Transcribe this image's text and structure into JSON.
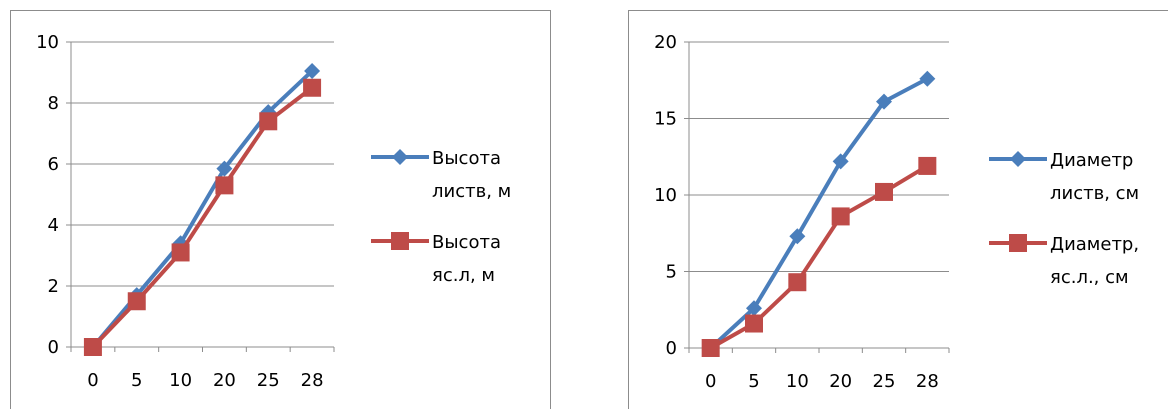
{
  "chart_data": [
    {
      "type": "line",
      "categories": [
        "0",
        "5",
        "10",
        "20",
        "25",
        "28"
      ],
      "ylim": [
        0,
        10
      ],
      "yticks": [
        0,
        2,
        4,
        6,
        8,
        10
      ],
      "grid": true,
      "legend_position": "right",
      "series": [
        {
          "name": "Высота листв, м",
          "name_lines": [
            "Высота",
            "листв, м"
          ],
          "color": "#4a7ebb",
          "marker": "diamond",
          "values": [
            0,
            1.7,
            3.4,
            5.85,
            7.7,
            9.05
          ]
        },
        {
          "name": "Высота яс.л, м",
          "name_lines": [
            "Высота",
            "яс.л, м"
          ],
          "color": "#be4b48",
          "marker": "square",
          "values": [
            0,
            1.5,
            3.1,
            5.3,
            7.4,
            8.5
          ]
        }
      ]
    },
    {
      "type": "line",
      "categories": [
        "0",
        "5",
        "10",
        "20",
        "25",
        "28"
      ],
      "ylim": [
        0,
        20
      ],
      "yticks": [
        0,
        5,
        10,
        15,
        20
      ],
      "grid": true,
      "legend_position": "right",
      "series": [
        {
          "name": "Диаметр листв, см",
          "name_lines": [
            "Диаметр",
            "листв, см"
          ],
          "color": "#4a7ebb",
          "marker": "diamond",
          "values": [
            0,
            2.6,
            7.3,
            12.2,
            16.1,
            17.6
          ]
        },
        {
          "name": "Диаметр, яс.л., см",
          "name_lines": [
            "Диаметр,",
            "яс.л., см"
          ],
          "color": "#be4b48",
          "marker": "square",
          "values": [
            0,
            1.6,
            4.3,
            8.6,
            10.2,
            11.9
          ]
        }
      ]
    }
  ]
}
